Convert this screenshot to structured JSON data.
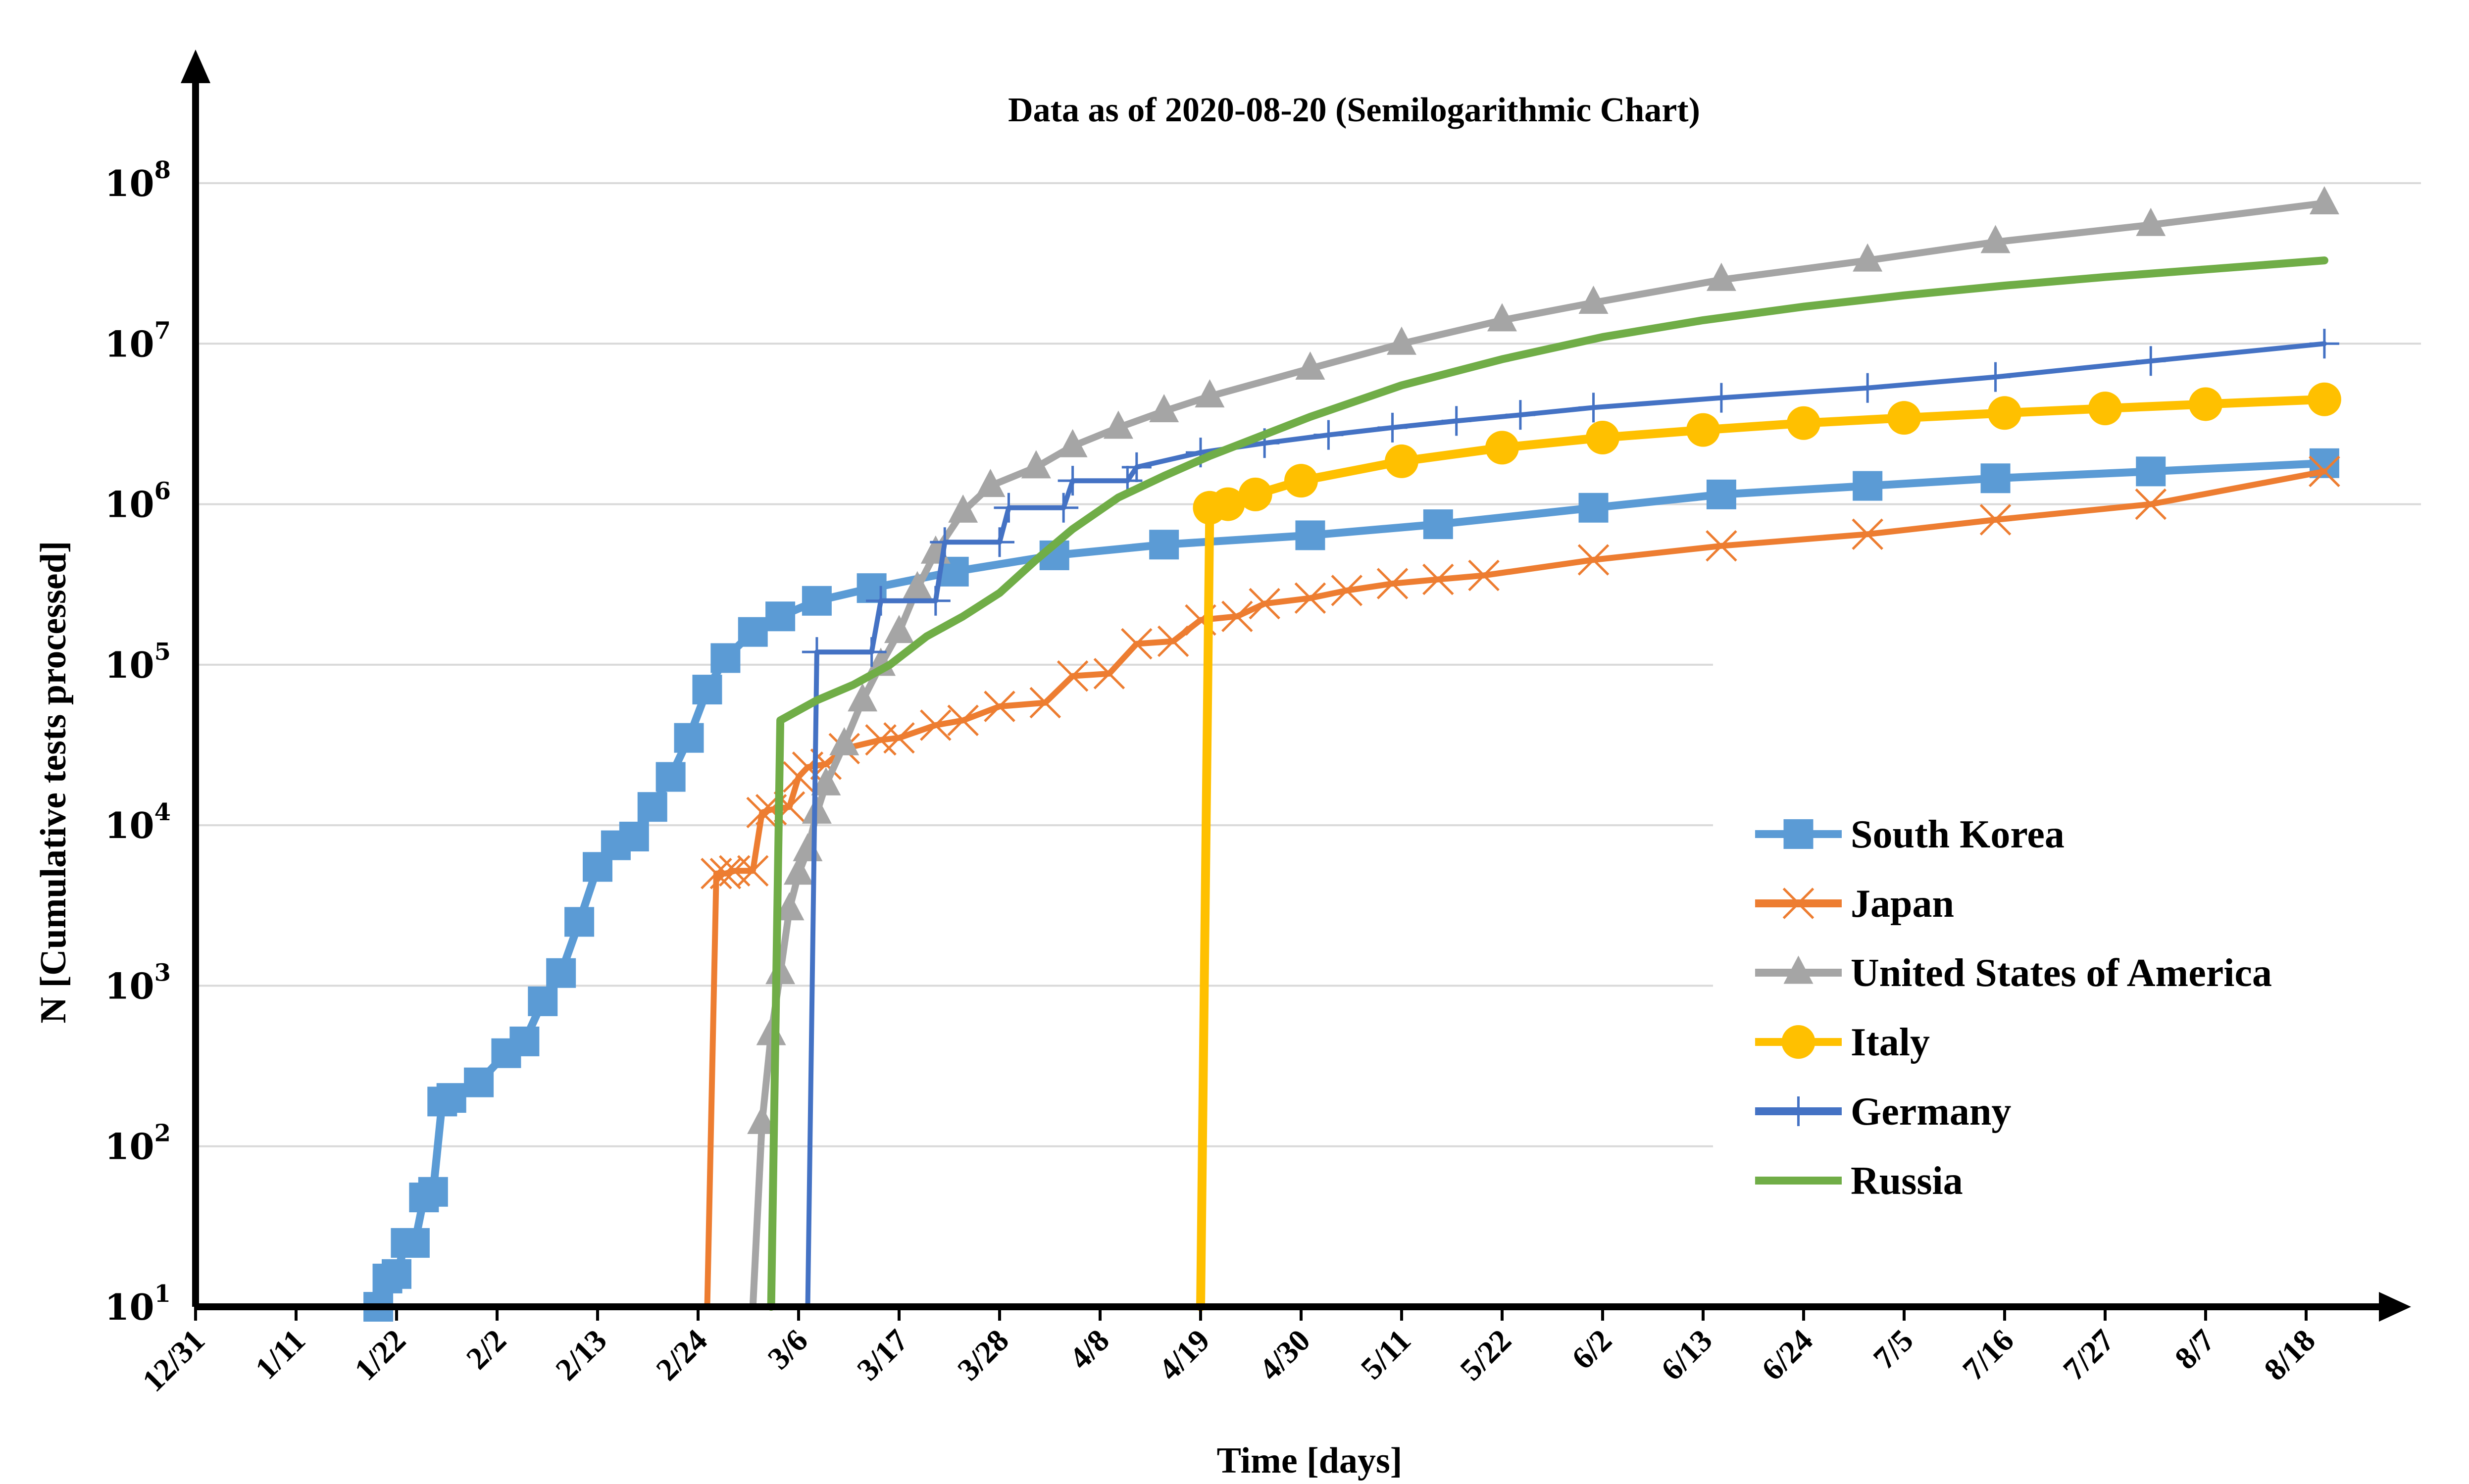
{
  "chart_data": {
    "type": "line",
    "title": "Data as of 2020-08-20 (Semilogarithmic Chart)",
    "xlabel": "Time [days]",
    "ylabel": "N [Cumulative tests processed]",
    "y_scale": "log",
    "ylim": [
      10,
      1000000000
    ],
    "xlim": [
      "2019-12-31",
      "2020-08-26"
    ],
    "grid": "horizontal",
    "legend_position": "right",
    "x_ticks": [
      "12/31",
      "1/11",
      "1/22",
      "2/2",
      "2/13",
      "2/24",
      "3/6",
      "3/17",
      "3/28",
      "4/8",
      "4/19",
      "4/30",
      "5/11",
      "5/22",
      "6/2",
      "6/13",
      "6/24",
      "7/5",
      "7/16",
      "7/27",
      "8/7",
      "8/18"
    ],
    "x_tick_dates": [
      "2019-12-31",
      "2020-01-11",
      "2020-01-22",
      "2020-02-02",
      "2020-02-13",
      "2020-02-24",
      "2020-03-06",
      "2020-03-17",
      "2020-03-28",
      "2020-04-08",
      "2020-04-19",
      "2020-04-30",
      "2020-05-11",
      "2020-05-22",
      "2020-06-02",
      "2020-06-13",
      "2020-06-24",
      "2020-07-05",
      "2020-07-16",
      "2020-07-27",
      "2020-08-07",
      "2020-08-18"
    ],
    "y_ticks": [
      {
        "base": "10",
        "exp": "1"
      },
      {
        "base": "10",
        "exp": "2"
      },
      {
        "base": "10",
        "exp": "3"
      },
      {
        "base": "10",
        "exp": "4"
      },
      {
        "base": "10",
        "exp": "5"
      },
      {
        "base": "10",
        "exp": "6"
      },
      {
        "base": "10",
        "exp": "7"
      },
      {
        "base": "10",
        "exp": "8"
      }
    ],
    "series": [
      {
        "name": "South Korea",
        "color": "#5B9BD5",
        "marker": "square",
        "x": [
          "2020-01-20",
          "2020-01-21",
          "2020-01-22",
          "2020-01-23",
          "2020-01-24",
          "2020-01-25",
          "2020-01-26",
          "2020-01-27",
          "2020-01-28",
          "2020-01-31",
          "2020-02-03",
          "2020-02-05",
          "2020-02-07",
          "2020-02-09",
          "2020-02-11",
          "2020-02-13",
          "2020-02-15",
          "2020-02-17",
          "2020-02-19",
          "2020-02-21",
          "2020-02-23",
          "2020-02-25",
          "2020-02-27",
          "2020-03-01",
          "2020-03-04",
          "2020-03-08",
          "2020-03-14",
          "2020-03-23",
          "2020-04-03",
          "2020-04-15",
          "2020-05-01",
          "2020-05-15",
          "2020-06-01",
          "2020-06-15",
          "2020-07-01",
          "2020-07-15",
          "2020-08-01",
          "2020-08-20"
        ],
        "y": [
          10,
          15,
          16,
          25,
          25,
          48,
          52,
          190,
          200,
          250,
          380,
          450,
          800,
          1200,
          2500,
          5500,
          7500,
          8500,
          13000,
          20000,
          35000,
          70000,
          110000,
          160000,
          200000,
          250000,
          300000,
          380000,
          480000,
          560000,
          640000,
          750000,
          950000,
          1150000,
          1300000,
          1450000,
          1600000,
          1800000
        ]
      },
      {
        "name": "Japan",
        "color": "#ED7D31",
        "marker": "x",
        "x": [
          "2020-02-25",
          "2020-02-26",
          "2020-02-27",
          "2020-02-28",
          "2020-03-01",
          "2020-03-02",
          "2020-03-03",
          "2020-03-05",
          "2020-03-06",
          "2020-03-07",
          "2020-03-09",
          "2020-03-11",
          "2020-03-15",
          "2020-03-17",
          "2020-03-21",
          "2020-03-24",
          "2020-03-28",
          "2020-04-02",
          "2020-04-05",
          "2020-04-09",
          "2020-04-12",
          "2020-04-16",
          "2020-04-19",
          "2020-04-23",
          "2020-04-26",
          "2020-05-01",
          "2020-05-05",
          "2020-05-10",
          "2020-05-15",
          "2020-05-20",
          "2020-06-01",
          "2020-06-15",
          "2020-07-01",
          "2020-07-15",
          "2020-08-01",
          "2020-08-20"
        ],
        "y": [
          10,
          5000,
          5000,
          5200,
          5200,
          12000,
          12500,
          13000,
          20000,
          23000,
          24000,
          30000,
          34000,
          35000,
          42000,
          45000,
          55000,
          58000,
          85000,
          88000,
          135000,
          140000,
          190000,
          200000,
          240000,
          260000,
          290000,
          320000,
          340000,
          360000,
          450000,
          550000,
          650000,
          800000,
          1000000,
          1600000
        ]
      },
      {
        "name": "United States of America",
        "color": "#A5A5A5",
        "marker": "triangle",
        "x": [
          "2020-03-01",
          "2020-03-02",
          "2020-03-03",
          "2020-03-04",
          "2020-03-05",
          "2020-03-06",
          "2020-03-07",
          "2020-03-08",
          "2020-03-09",
          "2020-03-11",
          "2020-03-13",
          "2020-03-15",
          "2020-03-17",
          "2020-03-19",
          "2020-03-21",
          "2020-03-24",
          "2020-03-27",
          "2020-04-01",
          "2020-04-05",
          "2020-04-10",
          "2020-04-15",
          "2020-04-20",
          "2020-05-01",
          "2020-05-11",
          "2020-05-22",
          "2020-06-01",
          "2020-06-15",
          "2020-07-01",
          "2020-07-15",
          "2020-08-01",
          "2020-08-20"
        ],
        "y": [
          10,
          140,
          500,
          1200,
          3000,
          5000,
          7000,
          12000,
          18000,
          32000,
          60000,
          100000,
          160000,
          300000,
          500000,
          900000,
          1300000,
          1700000,
          2300000,
          3000000,
          3800000,
          4700000,
          7000000,
          10000000,
          14000000,
          18000000,
          25000000,
          33000000,
          43000000,
          55000000,
          75000000
        ]
      },
      {
        "name": "Italy",
        "color": "#FFC000",
        "marker": "circle",
        "x": [
          "2020-04-19",
          "2020-04-20",
          "2020-04-22",
          "2020-04-25",
          "2020-04-30",
          "2020-05-11",
          "2020-05-22",
          "2020-06-02",
          "2020-06-13",
          "2020-06-24",
          "2020-07-05",
          "2020-07-16",
          "2020-07-27",
          "2020-08-07",
          "2020-08-20"
        ],
        "y": [
          10,
          950000,
          1000000,
          1150000,
          1400000,
          1850000,
          2250000,
          2600000,
          2900000,
          3200000,
          3450000,
          3700000,
          3950000,
          4200000,
          4500000
        ]
      },
      {
        "name": "Germany",
        "color": "#4472C4",
        "marker": "plus",
        "x": [
          "2020-03-07",
          "2020-03-08",
          "2020-03-14",
          "2020-03-15",
          "2020-03-21",
          "2020-03-22",
          "2020-03-28",
          "2020-03-29",
          "2020-04-04",
          "2020-04-05",
          "2020-04-11",
          "2020-04-12",
          "2020-04-19",
          "2020-04-26",
          "2020-05-03",
          "2020-05-10",
          "2020-05-17",
          "2020-05-24",
          "2020-06-01",
          "2020-06-15",
          "2020-07-01",
          "2020-07-15",
          "2020-08-01",
          "2020-08-20"
        ],
        "y": [
          10,
          120000,
          120000,
          250000,
          250000,
          580000,
          580000,
          950000,
          950000,
          1400000,
          1400000,
          1700000,
          2100000,
          2400000,
          2700000,
          3000000,
          3300000,
          3600000,
          4000000,
          4600000,
          5300000,
          6200000,
          7800000,
          10000000
        ]
      },
      {
        "name": "Russia",
        "color": "#70AD47",
        "marker": "none",
        "x": [
          "2020-03-03",
          "2020-03-04",
          "2020-03-08",
          "2020-03-12",
          "2020-03-16",
          "2020-03-20",
          "2020-03-24",
          "2020-03-28",
          "2020-04-01",
          "2020-04-05",
          "2020-04-10",
          "2020-04-15",
          "2020-04-20",
          "2020-05-01",
          "2020-05-11",
          "2020-05-22",
          "2020-06-02",
          "2020-06-13",
          "2020-06-24",
          "2020-07-05",
          "2020-07-16",
          "2020-07-27",
          "2020-08-07",
          "2020-08-20"
        ],
        "y": [
          10,
          45000,
          60000,
          75000,
          100000,
          150000,
          200000,
          280000,
          450000,
          700000,
          1100000,
          1500000,
          2000000,
          3500000,
          5500000,
          8000000,
          11000000,
          14000000,
          17000000,
          20000000,
          23000000,
          26000000,
          29000000,
          33000000
        ]
      }
    ]
  }
}
